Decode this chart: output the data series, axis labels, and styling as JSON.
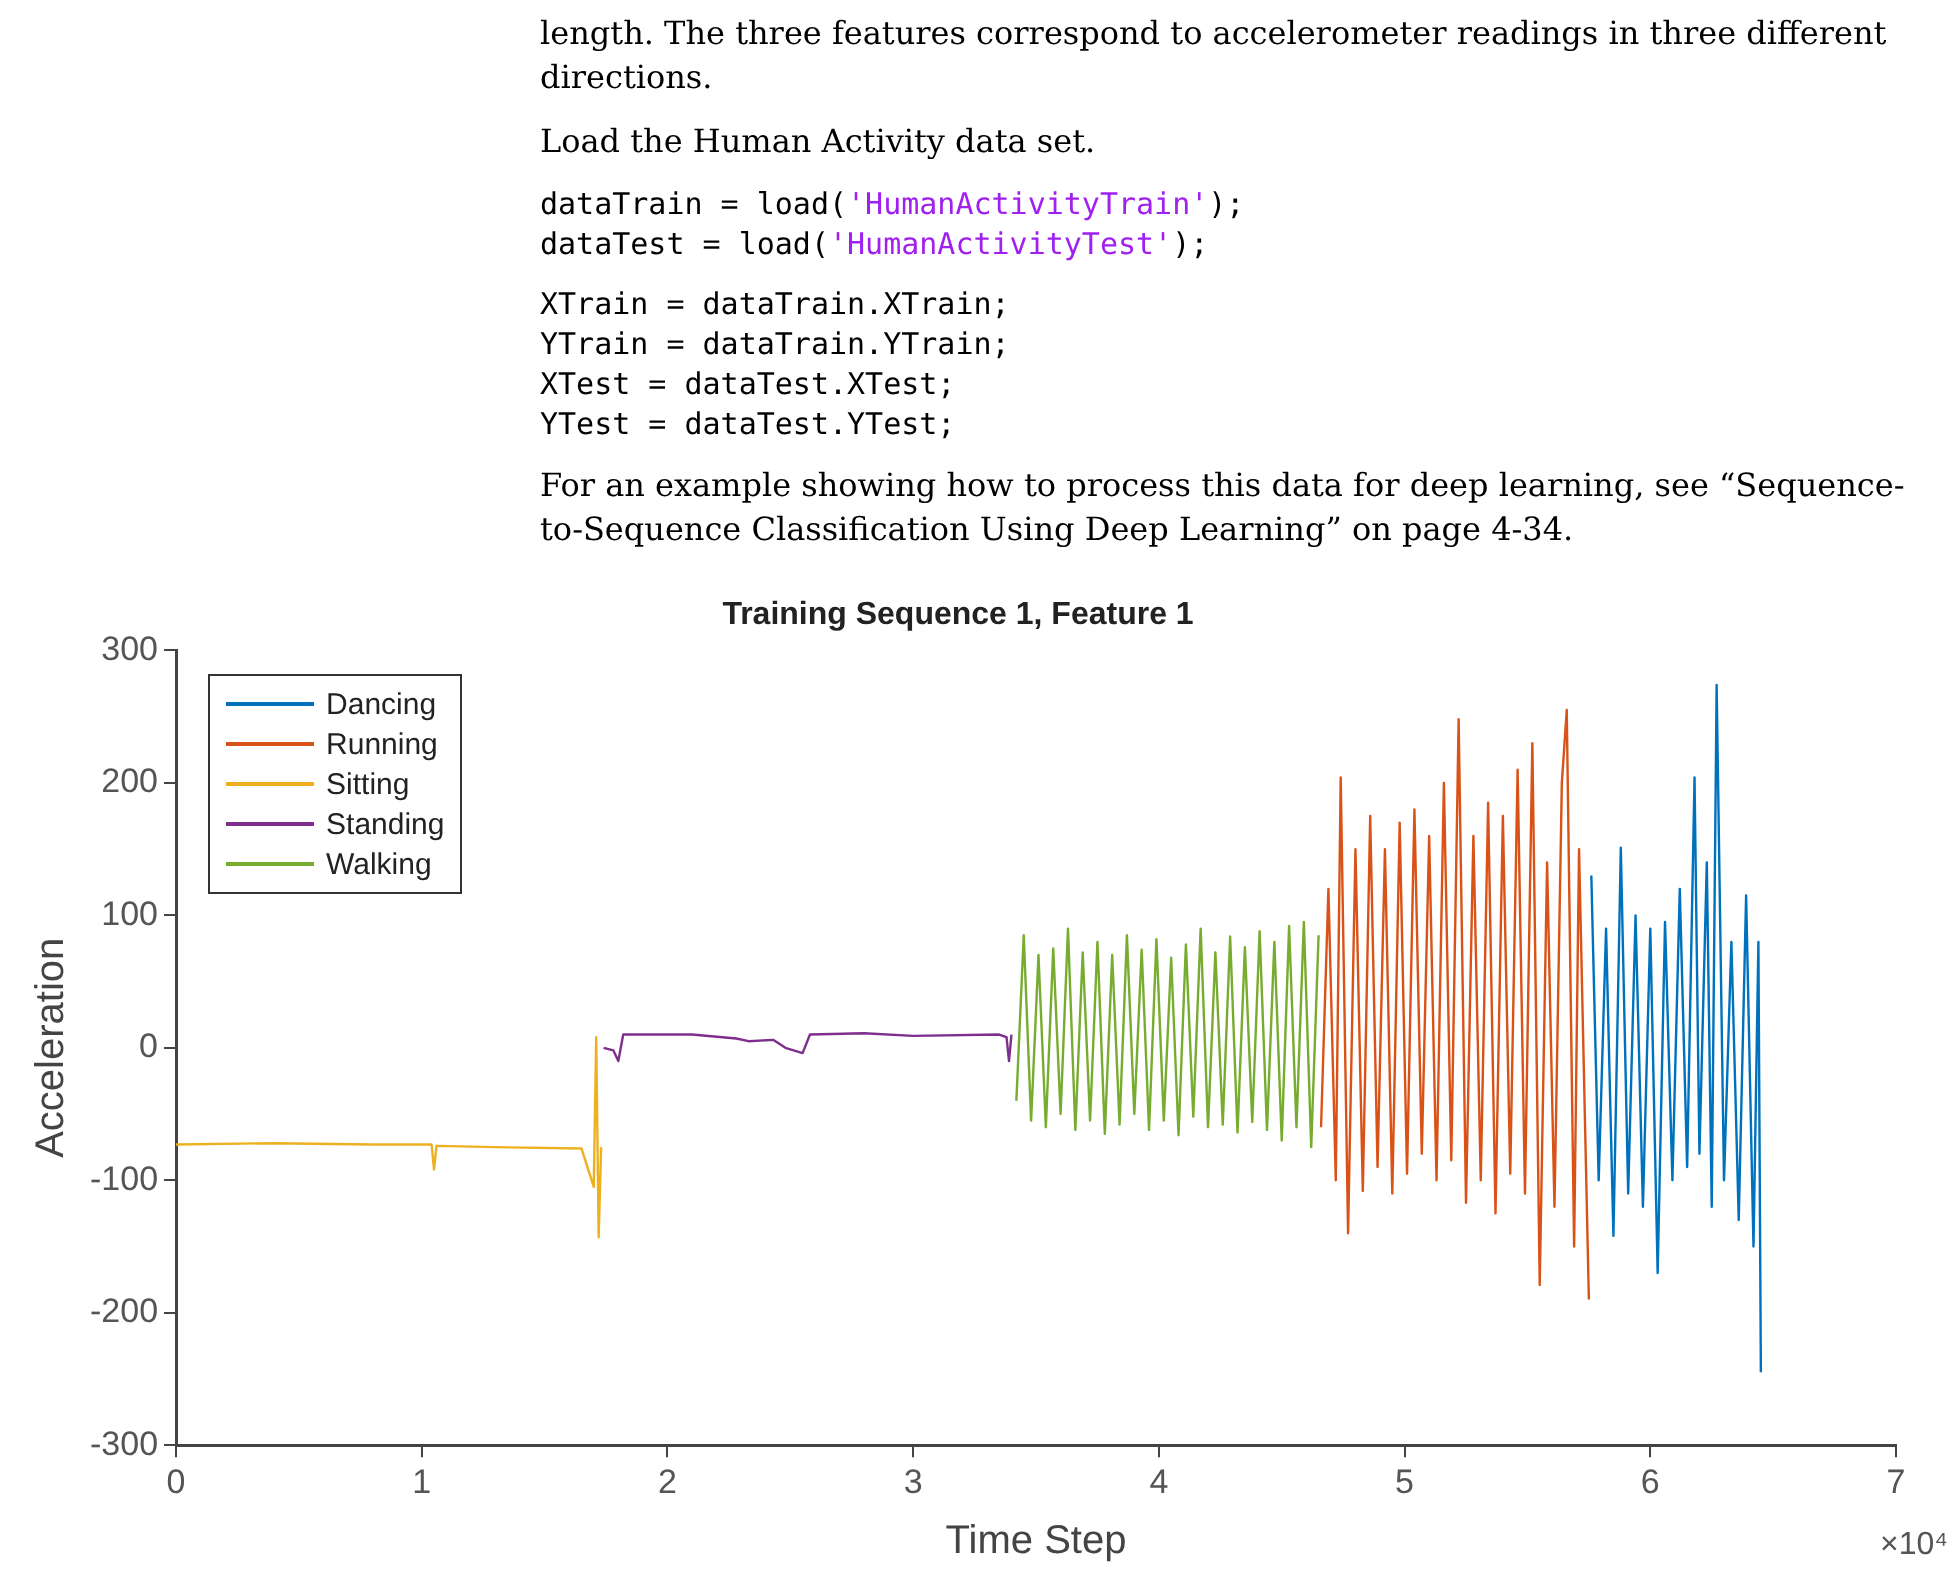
{
  "chart_data": {
    "type": "line",
    "title": "Training Sequence 1, Feature 1",
    "xlabel": "Time Step",
    "ylabel": "Acceleration",
    "xlim": [
      0,
      7
    ],
    "xticks": [
      0,
      1,
      2,
      3,
      4,
      5,
      6,
      7
    ],
    "ylim": [
      -300,
      300
    ],
    "yticks": [
      -300,
      -200,
      -100,
      0,
      100,
      200,
      300
    ],
    "grid": false,
    "legend": "top left",
    "annotations": [
      "length. The three features correspond to accelerometer readings in three different directions.",
      "Load the Human Activity data set.",
      "dataTrain = load('HumanActivityTrain');",
      "dataTest = load('HumanActivityTest');",
      "XTrain = dataTrain.XTrain;",
      "YTrain = dataTrain.YTrain;",
      "XTest = dataTest.XTest;",
      "YTest = dataTest.YTest;",
      "For an example showing how to process this data for deep learning, see “Sequence-to-Sequence Classification Using Deep Learning” on page 4-34.",
      "×10⁴"
    ],
    "series": [
      {
        "name": "Dancing",
        "color": "#0072bd",
        "x": [
          5.76,
          5.79,
          5.82,
          5.85,
          5.88,
          5.91,
          5.94,
          5.97,
          6.0,
          6.03,
          6.06,
          6.09,
          6.12,
          6.15,
          6.18,
          6.2,
          6.23,
          6.25,
          6.27,
          6.3,
          6.33,
          6.36,
          6.39,
          6.42,
          6.44,
          6.45
        ],
        "values": [
          130,
          -100,
          90,
          -142,
          151,
          -110,
          100,
          -120,
          90,
          -170,
          95,
          -100,
          120,
          -90,
          204,
          -80,
          140,
          -120,
          274,
          -100,
          80,
          -130,
          115,
          -150,
          80,
          -245
        ]
      },
      {
        "name": "Running",
        "color": "#d95319",
        "x": [
          4.66,
          4.69,
          4.72,
          4.74,
          4.77,
          4.8,
          4.83,
          4.86,
          4.89,
          4.92,
          4.95,
          4.98,
          5.01,
          5.04,
          5.07,
          5.1,
          5.13,
          5.16,
          5.19,
          5.22,
          5.25,
          5.28,
          5.31,
          5.34,
          5.37,
          5.4,
          5.43,
          5.46,
          5.49,
          5.52,
          5.55,
          5.58,
          5.61,
          5.64,
          5.66,
          5.69,
          5.71,
          5.75
        ],
        "values": [
          -60,
          120,
          -100,
          204,
          -140,
          150,
          -108,
          175,
          -90,
          150,
          -110,
          170,
          -95,
          180,
          -80,
          160,
          -100,
          200,
          -85,
          248,
          -117,
          160,
          -100,
          185,
          -125,
          175,
          -95,
          210,
          -110,
          230,
          -179,
          140,
          -120,
          200,
          255,
          -150,
          150,
          -190
        ]
      },
      {
        "name": "Sitting",
        "color": "#edb120",
        "x": [
          0,
          0.4,
          0.8,
          1.04,
          1.05,
          1.06,
          1.3,
          1.65,
          1.7,
          1.71,
          1.72,
          1.73
        ],
        "values": [
          -73,
          -72,
          -73,
          -73,
          -92,
          -74,
          -75,
          -76,
          -105,
          8,
          -143,
          -75
        ]
      },
      {
        "name": "Standing",
        "color": "#7e2f8e",
        "x": [
          1.74,
          1.78,
          1.8,
          1.82,
          2.1,
          2.28,
          2.33,
          2.43,
          2.48,
          2.55,
          2.58,
          2.8,
          3.0,
          3.35,
          3.38,
          3.39,
          3.4
        ],
        "values": [
          0,
          -2,
          -10,
          10,
          10,
          7,
          5,
          6,
          0,
          -4,
          10,
          11,
          9,
          10,
          8,
          -10,
          10
        ]
      },
      {
        "name": "Walking",
        "color": "#77ac30",
        "x": [
          3.42,
          3.45,
          3.48,
          3.51,
          3.54,
          3.57,
          3.6,
          3.63,
          3.66,
          3.69,
          3.72,
          3.75,
          3.78,
          3.81,
          3.84,
          3.87,
          3.9,
          3.93,
          3.96,
          3.99,
          4.02,
          4.05,
          4.08,
          4.11,
          4.14,
          4.17,
          4.2,
          4.23,
          4.26,
          4.29,
          4.32,
          4.35,
          4.38,
          4.41,
          4.44,
          4.47,
          4.5,
          4.53,
          4.56,
          4.59,
          4.62,
          4.65
        ],
        "values": [
          -40,
          85,
          -55,
          70,
          -60,
          75,
          -50,
          90,
          -62,
          72,
          -55,
          80,
          -65,
          70,
          -58,
          85,
          -50,
          74,
          -62,
          82,
          -55,
          68,
          -66,
          78,
          -52,
          90,
          -60,
          72,
          -58,
          84,
          -64,
          76,
          -56,
          88,
          -62,
          80,
          -70,
          92,
          -60,
          95,
          -75,
          85
        ]
      }
    ]
  }
}
